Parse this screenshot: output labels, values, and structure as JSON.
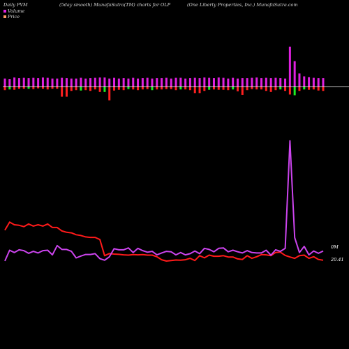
{
  "header": {
    "left": "Daily PVM",
    "center_left": "(5day smooth) MunafaSutra(TM) charts for OLP",
    "right": "(One   Liberty Properties, Inc.) MunafaSutra.com"
  },
  "legend": {
    "volume_label": "Volume",
    "price_label": "Price"
  },
  "end_labels": {
    "volume": "0M",
    "price": "20.41"
  },
  "colors": {
    "background": "#000000",
    "baseline": "#ffffff",
    "volume_up": "#e020e0",
    "volume_down": "#ff2020",
    "volume_green": "#20ee20",
    "volume_line": "#cc44ee",
    "price_line": "#ff1a1a",
    "legend_volume": "#e020e0",
    "legend_price": "#ff9966"
  },
  "chart_data": {
    "type": "line",
    "title": "",
    "x": [
      0,
      1,
      2,
      3,
      4,
      5,
      6,
      7,
      8,
      9,
      10,
      11,
      12,
      13,
      14,
      15,
      16,
      17,
      18,
      19,
      20,
      21,
      22,
      23,
      24,
      25,
      26,
      27,
      28,
      29,
      30,
      31,
      32,
      33,
      34,
      35,
      36,
      37,
      38,
      39,
      40,
      41,
      42,
      43,
      44,
      45,
      46,
      47,
      48,
      49,
      50,
      51,
      52,
      53,
      54,
      55,
      56,
      57,
      58,
      59,
      60,
      61,
      62,
      63,
      64,
      65,
      66,
      67
    ],
    "series": [
      {
        "name": "Volume",
        "values": [
          0.2,
          3.0,
          2.4,
          3.1,
          2.9,
          2.2,
          2.7,
          2.3,
          2.9,
          3.0,
          1.8,
          4.2,
          3.2,
          3.2,
          2.7,
          1.0,
          1.5,
          1.9,
          1.9,
          2.1,
          0.8,
          0.4,
          1.3,
          3.4,
          3.1,
          3.1,
          3.6,
          2.4,
          3.5,
          2.9,
          2.5,
          2.7,
          1.8,
          2.3,
          2.7,
          2.6,
          1.8,
          2.4,
          1.8,
          2.1,
          2.8,
          2.1,
          3.5,
          3.2,
          2.6,
          3.5,
          3.6,
          2.6,
          3.0,
          2.6,
          2.3,
          2.9,
          2.4,
          2.3,
          2.3,
          3.0,
          1.7,
          3.1,
          2.7,
          3.5,
          31.5,
          6.3,
          2.4,
          4.0,
          1.8,
          2.8,
          2.2,
          2.8
        ]
      },
      {
        "name": "Price",
        "values": [
          22.15,
          22.45,
          22.35,
          22.33,
          22.28,
          22.38,
          22.3,
          22.35,
          22.3,
          22.38,
          22.25,
          22.25,
          22.12,
          22.07,
          22.05,
          21.98,
          21.95,
          21.9,
          21.88,
          21.88,
          21.8,
          21.2,
          21.28,
          21.26,
          21.25,
          21.23,
          21.22,
          21.24,
          21.23,
          21.24,
          21.22,
          21.22,
          21.16,
          21.05,
          21.0,
          21.02,
          21.04,
          21.03,
          21.05,
          21.1,
          21.02,
          21.2,
          21.12,
          21.22,
          21.18,
          21.18,
          21.2,
          21.15,
          21.15,
          21.08,
          21.06,
          21.2,
          21.1,
          21.16,
          21.24,
          21.23,
          21.2,
          21.32,
          21.33,
          21.21,
          21.15,
          21.1,
          21.2,
          21.22,
          21.1,
          21.16,
          21.06,
          21.03
        ]
      }
    ],
    "volume_bars": {
      "up": [
        2.2,
        2.1,
        2.5,
        2.3,
        2.4,
        2.3,
        2.4,
        2.3,
        2.5,
        2.4,
        2.2,
        2.2,
        2.4,
        2.3,
        2.2,
        2.2,
        2.4,
        2.2,
        2.3,
        2.4,
        2.5,
        2.5,
        2.2,
        2.4,
        2.2,
        2.3,
        2.2,
        2.4,
        2.2,
        2.3,
        2.4,
        2.2,
        2.3,
        2.3,
        2.4,
        2.2,
        2.4,
        2.4,
        2.2,
        2.3,
        2.4,
        2.3,
        2.5,
        2.4,
        2.3,
        2.5,
        2.4,
        2.2,
        2.4,
        2.2,
        2.3,
        2.3,
        2.4,
        2.5,
        2.3,
        2.4,
        2.3,
        2.4,
        2.3,
        2.2,
        11.0,
        7.0,
        3.6,
        2.8,
        2.6,
        2.4,
        2.3,
        2.3
      ],
      "down": [
        1.0,
        0.8,
        0.9,
        0.6,
        0.6,
        0.6,
        0.7,
        0.5,
        0.6,
        0.8,
        0.6,
        0.6,
        2.8,
        2.8,
        1.2,
        1.0,
        1.1,
        1.0,
        1.2,
        0.8,
        1.5,
        1.5,
        3.8,
        1.1,
        0.9,
        1.0,
        0.7,
        0.8,
        1.0,
        0.8,
        0.7,
        1.0,
        0.8,
        0.8,
        0.7,
        0.7,
        1.0,
        0.8,
        0.8,
        1.0,
        1.8,
        1.8,
        1.2,
        0.9,
        0.8,
        0.9,
        0.9,
        1.0,
        0.8,
        1.3,
        2.3,
        1.0,
        0.7,
        0.8,
        0.8,
        1.2,
        1.5,
        1.0,
        0.8,
        1.2,
        2.2,
        2.4,
        1.2,
        0.8,
        0.9,
        0.8,
        1.1,
        1.2
      ],
      "green_bars": [
        1,
        5,
        16,
        21,
        26,
        31,
        37,
        43,
        48,
        58,
        61,
        63
      ]
    },
    "grid": false,
    "legend": "top-left"
  }
}
